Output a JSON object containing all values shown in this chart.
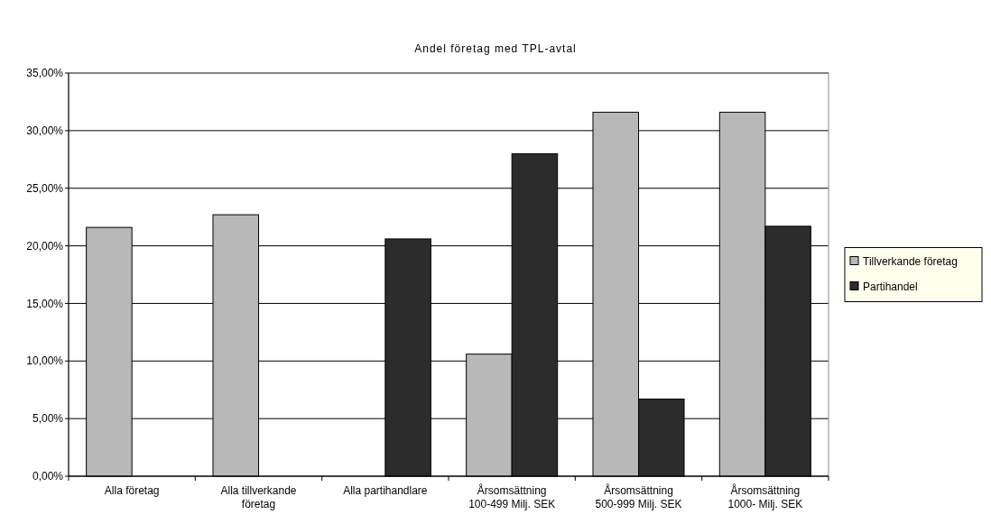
{
  "chart_data": {
    "type": "bar",
    "title": "Andel företag med TPL-avtal",
    "categories": [
      "Alla företag",
      "Alla tillverkande företag",
      "Alla partihandlare",
      "Årsomsättning 100-499 Milj. SEK",
      "Årsomsättning 500-999 Milj. SEK",
      "Årsomsättning 1000- Milj. SEK"
    ],
    "series": [
      {
        "name": "Tillverkande företag",
        "color": "#b8b8b8",
        "values": [
          21.6,
          22.7,
          null,
          10.6,
          31.6,
          31.6
        ]
      },
      {
        "name": "Partihandel",
        "color": "#2c2c2c",
        "values": [
          null,
          null,
          20.6,
          28.0,
          6.7,
          21.7
        ]
      }
    ],
    "ylim": [
      0,
      35
    ],
    "yticks": [
      {
        "value": 0,
        "label": "0,00%"
      },
      {
        "value": 5,
        "label": "5,00%"
      },
      {
        "value": 10,
        "label": "10,00%"
      },
      {
        "value": 15,
        "label": "15,00%"
      },
      {
        "value": 20,
        "label": "20,00%"
      },
      {
        "value": 25,
        "label": "25,00%"
      },
      {
        "value": 30,
        "label": "30,00%"
      },
      {
        "value": 35,
        "label": "35,00%"
      }
    ],
    "grid": "y",
    "legend": "right"
  }
}
